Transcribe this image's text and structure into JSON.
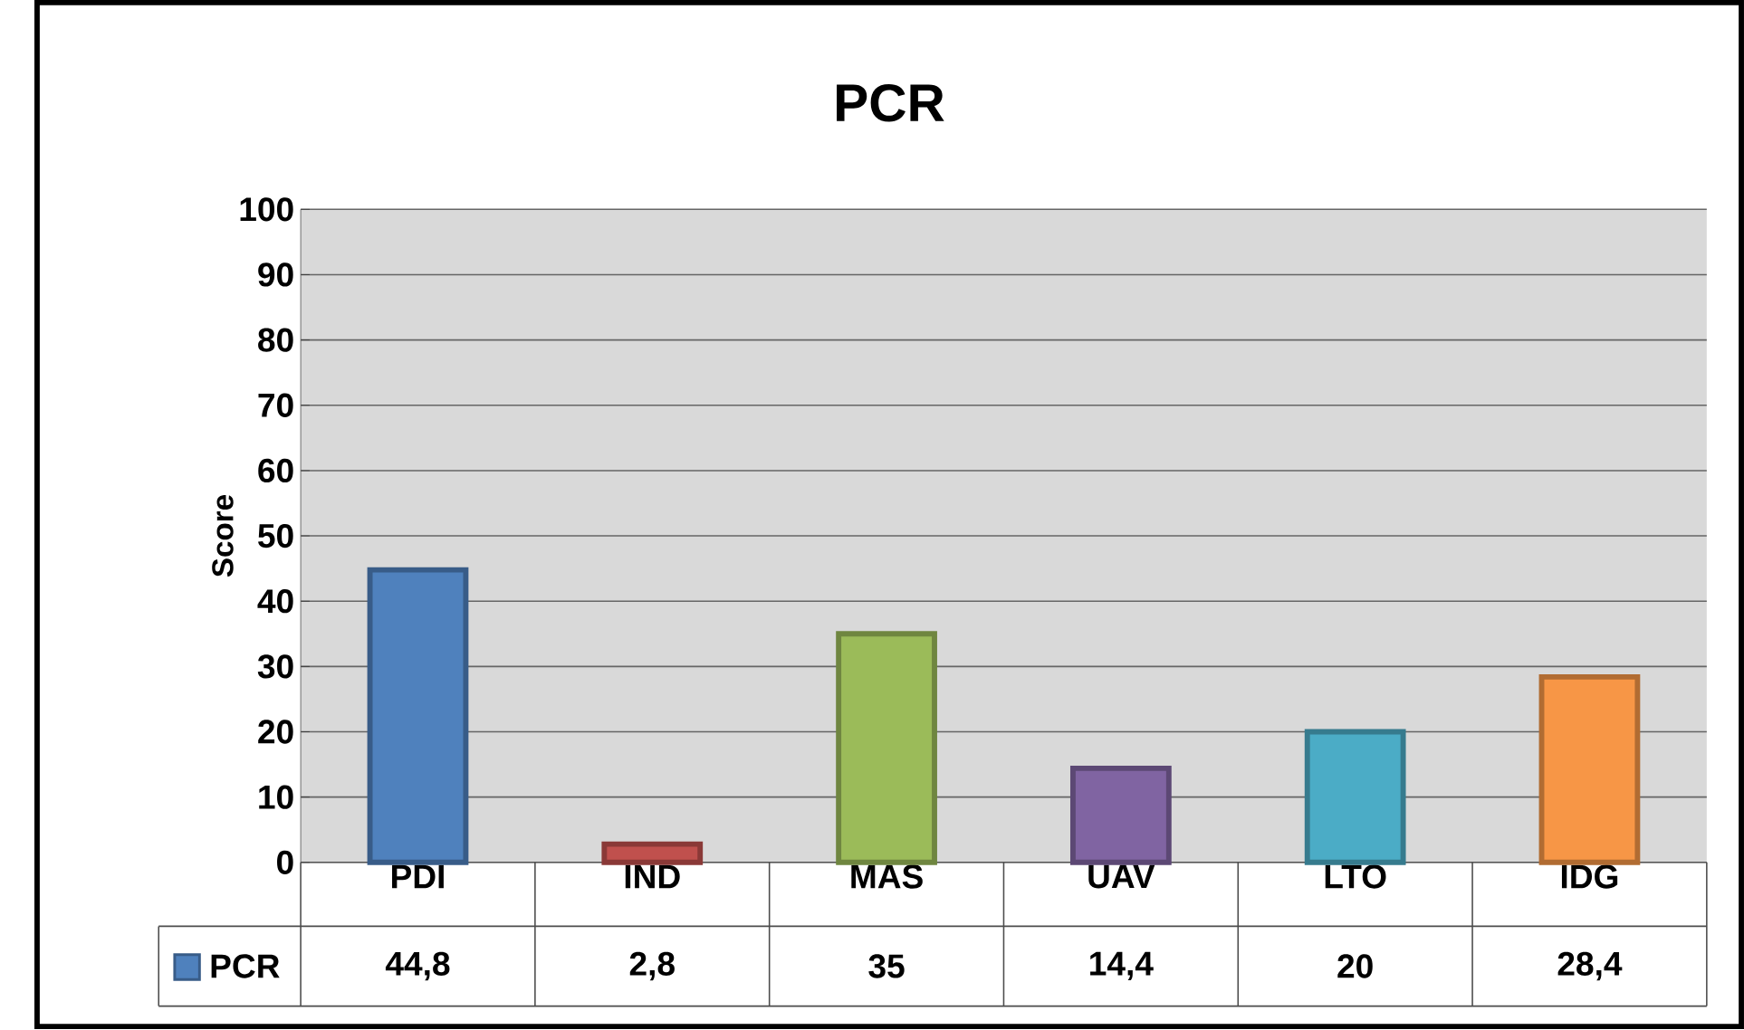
{
  "chart_data": {
    "type": "bar",
    "title": "PCR",
    "ylabel": "Score",
    "categories": [
      "PDI",
      "IND",
      "MAS",
      "UAV",
      "LTO",
      "IDG"
    ],
    "series": [
      {
        "name": "PCR",
        "color": "#4f81bd",
        "colors": [
          "#4f81bd",
          "#c0504d",
          "#9bbb59",
          "#8064a2",
          "#4bacc6",
          "#f79646"
        ],
        "values": [
          44.8,
          2.8,
          35,
          14.4,
          20,
          28.4
        ],
        "value_labels": [
          "44,8",
          "2,8",
          "35",
          "14,4",
          "20",
          "28,4"
        ]
      }
    ],
    "ylim": [
      0,
      100
    ],
    "yticks": [
      0,
      10,
      20,
      30,
      40,
      50,
      60,
      70,
      80,
      90,
      100
    ],
    "grid": "y",
    "legend": "bottom"
  }
}
